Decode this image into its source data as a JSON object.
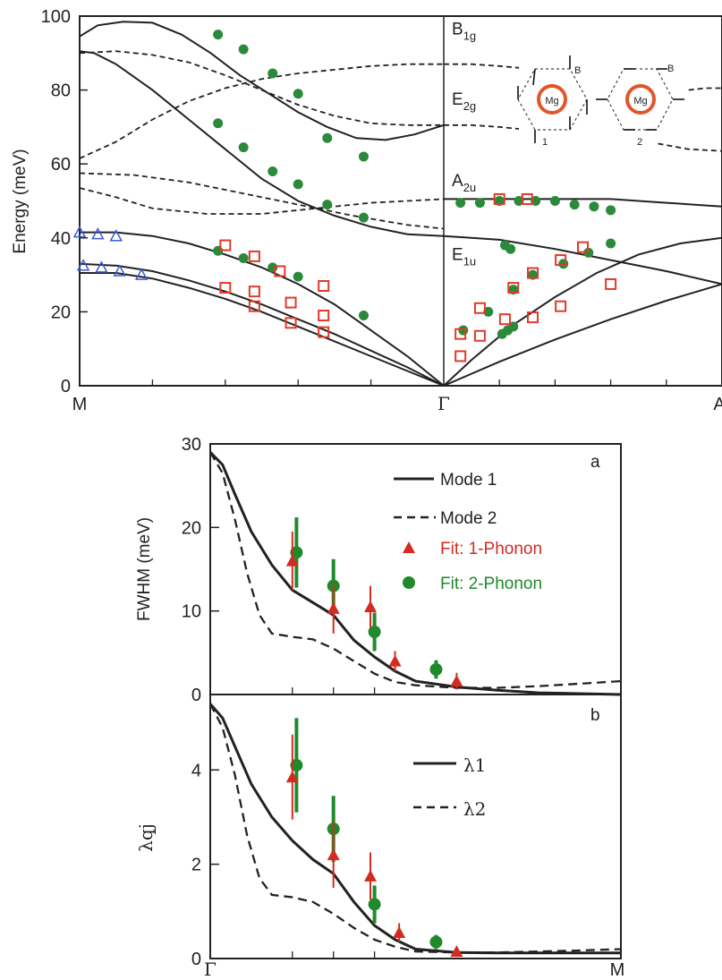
{
  "chart_data": [
    {
      "type": "line",
      "panel": "dispersion",
      "ylabel": "Energy (meV)",
      "ylim": [
        0,
        100
      ],
      "yticks": [
        "0",
        "20",
        "40",
        "60",
        "80",
        "100"
      ],
      "xticks": [
        "M",
        "Γ",
        "A"
      ],
      "mode_labels": [
        {
          "main": "B",
          "sub": "1g",
          "y": 95
        },
        {
          "main": "E",
          "sub": "2g",
          "y": 76
        },
        {
          "main": "A",
          "sub": "2u",
          "y": 54
        },
        {
          "main": "E",
          "sub": "1u",
          "y": 34
        }
      ],
      "inset_labels": {
        "mg": "Mg",
        "b": "B",
        "mode1": "1",
        "mode2": "2"
      },
      "colors": {
        "line": "#222222",
        "green": "#2a8a3a",
        "red": "#e03a2a",
        "blue": "#3a5ad8"
      },
      "series": [
        {
          "style": "solid",
          "segment": "M-Γ",
          "x": [
            0,
            0.05,
            0.12,
            0.2,
            0.28,
            0.36,
            0.44,
            0.52,
            0.6,
            0.68,
            0.76,
            0.84,
            0.92,
            1.0
          ],
          "y": [
            94.5,
            97.5,
            98.5,
            98.2,
            95,
            90,
            84,
            79,
            74,
            70,
            67,
            66.5,
            68,
            70.5
          ]
        },
        {
          "style": "solid",
          "segment": "M-Γ",
          "x": [
            0,
            0.04,
            0.1,
            0.2,
            0.3,
            0.4,
            0.5,
            0.6,
            0.7,
            0.8,
            0.9,
            1.0
          ],
          "y": [
            90.5,
            90,
            87,
            80,
            72,
            64,
            56,
            50,
            46,
            43,
            41,
            40.5
          ]
        },
        {
          "style": "dashed",
          "segment": "M-Γ",
          "x": [
            0,
            0.1,
            0.2,
            0.3,
            0.4,
            0.5,
            0.6,
            0.7,
            0.8,
            0.9,
            1.0
          ],
          "y": [
            90,
            90.5,
            89.5,
            87.5,
            84,
            80,
            76,
            73,
            71,
            70.5,
            70.5
          ]
        },
        {
          "style": "dashed",
          "segment": "M-Γ",
          "x": [
            0,
            0.1,
            0.2,
            0.3,
            0.4,
            0.5,
            0.6,
            0.7,
            0.8,
            0.9,
            1.0
          ],
          "y": [
            61.5,
            66,
            72,
            77,
            80.5,
            83,
            84.5,
            85.5,
            86.5,
            87,
            87
          ]
        },
        {
          "style": "dashed",
          "segment": "M-Γ",
          "x": [
            0,
            0.15,
            0.3,
            0.45,
            0.6,
            0.75,
            0.9,
            1.0
          ],
          "y": [
            57.5,
            57,
            55,
            52,
            49,
            46,
            43.5,
            42.5
          ]
        },
        {
          "style": "dashed",
          "segment": "M-Γ",
          "x": [
            0,
            0.1,
            0.2,
            0.35,
            0.5,
            0.65,
            0.8,
            1.0
          ],
          "y": [
            53.5,
            51,
            48,
            46.5,
            46.5,
            48,
            49.5,
            50.5
          ]
        },
        {
          "style": "solid",
          "segment": "M-Γ",
          "x": [
            0,
            0.1,
            0.2,
            0.3,
            0.4,
            0.5,
            0.6,
            0.7,
            0.8,
            0.9,
            1.0
          ],
          "y": [
            41.5,
            41.5,
            40.5,
            38.5,
            35.5,
            32,
            27.5,
            22,
            15,
            8,
            0
          ]
        },
        {
          "style": "solid",
          "segment": "M-Γ",
          "x": [
            0,
            0.1,
            0.2,
            0.3,
            0.4,
            0.5,
            0.6,
            0.7,
            0.8,
            0.9,
            1.0
          ],
          "y": [
            33,
            32.5,
            31,
            28.5,
            25.5,
            22,
            18,
            14,
            9.5,
            5,
            0
          ]
        },
        {
          "style": "solid",
          "segment": "M-Γ",
          "x": [
            0,
            0.1,
            0.2,
            0.3,
            0.4,
            0.5,
            0.6,
            0.7,
            0.8,
            0.9,
            1.0
          ],
          "y": [
            30.5,
            30.5,
            29,
            26.5,
            23.5,
            20,
            16,
            12,
            8,
            4,
            0
          ]
        },
        {
          "style": "solid",
          "segment": "Γ-A",
          "x": [
            0,
            0.2,
            0.4,
            0.6,
            0.8,
            1.0
          ],
          "y": [
            50.5,
            50.5,
            50.5,
            50.5,
            49.5,
            48.5
          ]
        },
        {
          "style": "solid",
          "segment": "Γ-A",
          "x": [
            0,
            0.2,
            0.4,
            0.6,
            0.8,
            1.0
          ],
          "y": [
            40.5,
            39.5,
            37,
            34,
            31,
            27.5
          ]
        },
        {
          "style": "solid",
          "segment": "Γ-A",
          "x": [
            0,
            0.1,
            0.25,
            0.4,
            0.55,
            0.7,
            0.85,
            1.0
          ],
          "y": [
            0,
            7,
            16.5,
            24,
            30.5,
            35.5,
            38.5,
            40
          ]
        },
        {
          "style": "solid",
          "segment": "Γ-A",
          "x": [
            0,
            0.2,
            0.4,
            0.6,
            0.8,
            1.0
          ],
          "y": [
            0,
            6.5,
            12.5,
            18,
            23,
            27.5
          ]
        },
        {
          "style": "dashed",
          "segment": "Γ-A",
          "x": [
            0,
            0.1,
            0.2,
            0.27
          ],
          "y": [
            87,
            87,
            86.5,
            86
          ]
        },
        {
          "style": "dashed",
          "segment": "Γ-A",
          "x": [
            0,
            0.1,
            0.2,
            0.27
          ],
          "y": [
            70.5,
            70.5,
            70,
            69.5
          ]
        },
        {
          "style": "dashed",
          "segment": "Γ-A",
          "x": [
            0.88,
            0.94,
            1.0
          ],
          "y": [
            80,
            80.5,
            80.5
          ]
        },
        {
          "style": "dashed",
          "segment": "Γ-A",
          "x": [
            0.77,
            0.88,
            1.0
          ],
          "y": [
            65.5,
            64,
            63.5
          ]
        }
      ],
      "points": {
        "green_filled": [
          [
            0.38,
            95
          ],
          [
            0.45,
            91
          ],
          [
            0.53,
            84.5
          ],
          [
            0.6,
            79
          ],
          [
            0.68,
            67
          ],
          [
            0.78,
            62
          ],
          [
            0.38,
            71
          ],
          [
            0.45,
            64.5
          ],
          [
            0.53,
            58
          ],
          [
            0.6,
            54.5
          ],
          [
            0.68,
            49
          ],
          [
            0.78,
            45.5
          ],
          [
            0.38,
            36.5
          ],
          [
            0.45,
            34.5
          ],
          [
            0.53,
            32
          ],
          [
            0.6,
            29.5
          ],
          [
            0.78,
            19
          ],
          [
            1.06,
            49.5
          ],
          [
            1.13,
            49.5
          ],
          [
            1.2,
            50
          ],
          [
            1.27,
            50
          ],
          [
            1.33,
            50
          ],
          [
            1.4,
            50
          ],
          [
            1.47,
            49
          ],
          [
            1.54,
            48.5
          ],
          [
            1.6,
            47.5
          ],
          [
            1.07,
            15
          ],
          [
            1.16,
            20
          ],
          [
            1.25,
            26
          ],
          [
            1.22,
            38
          ],
          [
            1.24,
            37
          ],
          [
            1.32,
            30
          ],
          [
            1.43,
            33
          ],
          [
            1.52,
            36
          ],
          [
            1.6,
            38.5
          ],
          [
            1.21,
            14
          ],
          [
            1.23,
            15
          ],
          [
            1.25,
            16
          ]
        ],
        "red_squares": [
          [
            0.4,
            38
          ],
          [
            0.48,
            35
          ],
          [
            0.55,
            31
          ],
          [
            0.67,
            27
          ],
          [
            0.4,
            26.5
          ],
          [
            0.48,
            25.5
          ],
          [
            0.58,
            22.5
          ],
          [
            0.67,
            19
          ],
          [
            0.48,
            21.5
          ],
          [
            0.58,
            17
          ],
          [
            0.67,
            14.5
          ],
          [
            1.06,
            14
          ],
          [
            1.06,
            8
          ],
          [
            1.13,
            21
          ],
          [
            1.13,
            13.5
          ],
          [
            1.22,
            18
          ],
          [
            1.25,
            26.5
          ],
          [
            1.32,
            30.5
          ],
          [
            1.32,
            18.5
          ],
          [
            1.42,
            34
          ],
          [
            1.42,
            21.5
          ],
          [
            1.5,
            37.5
          ],
          [
            1.2,
            50.5
          ],
          [
            1.3,
            50.5
          ],
          [
            1.6,
            27.5
          ]
        ],
        "blue_open_triangles": [
          [
            0,
            41.5
          ],
          [
            0.05,
            41
          ],
          [
            0.1,
            40.5
          ],
          [
            0.01,
            32.5
          ],
          [
            0.06,
            32
          ],
          [
            0.11,
            31
          ],
          [
            0.17,
            30
          ]
        ]
      }
    },
    {
      "type": "line",
      "panel": "a",
      "ylabel": "FWHM (meV)",
      "ylim": [
        0,
        30
      ],
      "yticks": [
        "0",
        "10",
        "20",
        "30"
      ],
      "legend": [
        "Mode 1",
        "Mode 2",
        "Fit: 1-Phonon",
        "Fit: 2-Phonon"
      ],
      "legend_colors": [
        "#222222",
        "#222222",
        "#d42a1f",
        "#1f8a2a"
      ],
      "series": [
        {
          "name": "Mode 1",
          "style": "solid",
          "x": [
            0,
            0.03,
            0.06,
            0.1,
            0.15,
            0.2,
            0.25,
            0.3,
            0.35,
            0.4,
            0.45,
            0.5,
            0.6,
            0.7,
            0.8,
            1.0
          ],
          "y": [
            29,
            27.5,
            24,
            19.5,
            15.5,
            12.5,
            11,
            9.5,
            6.5,
            4.5,
            2.8,
            1.6,
            0.9,
            0.5,
            0.2,
            0
          ]
        },
        {
          "name": "Mode 2",
          "style": "dashed",
          "x": [
            0,
            0.03,
            0.06,
            0.09,
            0.12,
            0.15,
            0.2,
            0.25,
            0.3,
            0.35,
            0.4,
            0.45,
            0.5,
            0.6,
            0.7,
            0.8,
            0.9,
            1.0
          ],
          "y": [
            29,
            26.5,
            21,
            14.5,
            9.5,
            7.3,
            6.9,
            6.6,
            5.5,
            4,
            2.5,
            1.5,
            1.1,
            0.8,
            0.8,
            1,
            1.3,
            1.6
          ]
        }
      ],
      "fit_1_phonon": [
        [
          0.2,
          16,
          3.5
        ],
        [
          0.3,
          10.3,
          3
        ],
        [
          0.39,
          10.5,
          2.5
        ],
        [
          0.45,
          4,
          1.2
        ],
        [
          0.6,
          1.6,
          1
        ]
      ],
      "fit_2_phonon": [
        [
          0.21,
          17,
          4.2
        ],
        [
          0.3,
          13,
          3.2
        ],
        [
          0.4,
          7.5,
          2.3
        ],
        [
          0.55,
          3,
          1.1
        ]
      ]
    },
    {
      "type": "line",
      "panel": "b",
      "ylabel": "λqj",
      "ylim": [
        0,
        5.6
      ],
      "yticks": [
        "0",
        "2",
        "4"
      ],
      "xticks": [
        "Γ",
        "M"
      ],
      "legend": [
        "λ1",
        "λ2"
      ],
      "series": [
        {
          "name": "λ1",
          "style": "solid",
          "x": [
            0,
            0.03,
            0.06,
            0.1,
            0.15,
            0.2,
            0.25,
            0.3,
            0.35,
            0.4,
            0.45,
            0.5,
            0.6,
            0.7,
            0.8,
            1.0
          ],
          "y": [
            5.4,
            5.1,
            4.5,
            3.7,
            3.0,
            2.5,
            2.1,
            1.8,
            1.2,
            0.7,
            0.4,
            0.2,
            0.13,
            0.12,
            0.12,
            0.12
          ]
        },
        {
          "name": "λ2",
          "style": "dashed",
          "x": [
            0,
            0.03,
            0.06,
            0.09,
            0.12,
            0.15,
            0.2,
            0.25,
            0.3,
            0.35,
            0.4,
            0.45,
            0.5,
            0.6,
            0.7,
            0.8,
            0.9,
            1.0
          ],
          "y": [
            5.4,
            4.9,
            3.9,
            2.6,
            1.7,
            1.35,
            1.3,
            1.2,
            0.95,
            0.65,
            0.4,
            0.25,
            0.15,
            0.13,
            0.13,
            0.15,
            0.17,
            0.2
          ]
        }
      ],
      "fit_1_phonon": [
        [
          0.2,
          3.85,
          0.9
        ],
        [
          0.3,
          2.2,
          0.7
        ],
        [
          0.39,
          1.75,
          0.5
        ],
        [
          0.46,
          0.55,
          0.2
        ],
        [
          0.6,
          0.15,
          0.1
        ]
      ],
      "fit_2_phonon": [
        [
          0.21,
          4.1,
          1.0
        ],
        [
          0.3,
          2.75,
          0.7
        ],
        [
          0.4,
          1.15,
          0.4
        ],
        [
          0.55,
          0.35,
          0.15
        ]
      ]
    }
  ],
  "panel_letters": {
    "a": "a",
    "b": "b"
  }
}
